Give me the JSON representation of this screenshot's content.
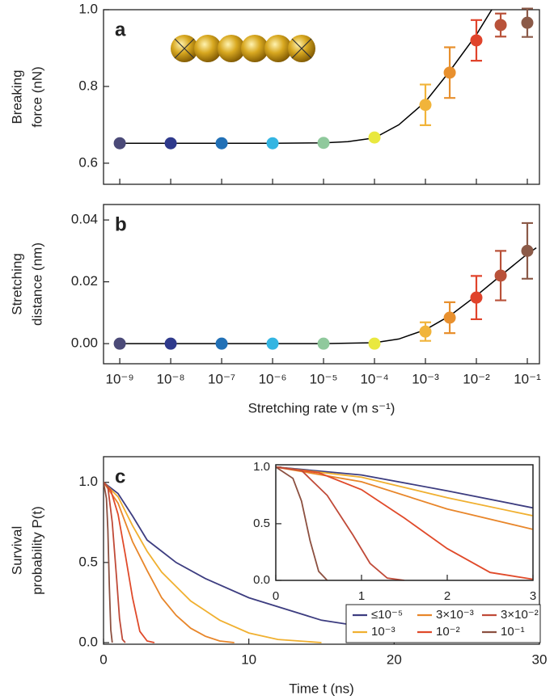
{
  "chart_data": [
    {
      "type": "scatter",
      "label": "a",
      "ylabel_lines": [
        "Breaking",
        "force (nN)"
      ],
      "xscale": "log",
      "xlim": [
        4.8e-10,
        0.173
      ],
      "ylim": [
        0.545,
        1.0
      ],
      "xticks": [
        1e-09,
        1e-08,
        1e-07,
        1e-06,
        1e-05,
        0.0001,
        0.001,
        0.01,
        0.1
      ],
      "yticks": [
        0.6,
        0.8,
        {
          "value": 1,
          "label": "1.0"
        }
      ],
      "x": [
        1e-09,
        1e-08,
        1e-07,
        1e-06,
        1e-05,
        0.0001,
        0.001,
        0.003,
        0.01,
        0.03,
        0.1
      ],
      "values": [
        0.652,
        0.652,
        0.652,
        0.652,
        0.653,
        0.667,
        0.752,
        0.836,
        0.92,
        0.96,
        0.966
      ],
      "errors": [
        null,
        null,
        null,
        null,
        null,
        null,
        0.053,
        0.066,
        0.053,
        0.03,
        0.037
      ],
      "colors": [
        "#4b4a78",
        "#2f3a8c",
        "#2170b6",
        "#33b5e2",
        "#8fc99c",
        "#e9e83f",
        "#f1b43a",
        "#e8902e",
        "#e0432b",
        "#b9523a",
        "#8b5a48"
      ],
      "fit": {
        "color": "#000000",
        "x": [
          1e-09,
          1e-06,
          1e-05,
          3e-05,
          0.0001,
          0.0003,
          0.001,
          0.003,
          0.01,
          0.02
        ],
        "values": [
          0.652,
          0.652,
          0.653,
          0.656,
          0.666,
          0.7,
          0.76,
          0.84,
          0.935,
          1.0
        ]
      }
    },
    {
      "type": "scatter",
      "label": "b",
      "ylabel_lines": [
        "Stretching",
        "distance (nm)"
      ],
      "xlabel": "Stretching rate v (m s⁻¹)",
      "xscale": "log",
      "xlim": [
        4.8e-10,
        0.173
      ],
      "ylim": [
        -0.0065,
        0.045
      ],
      "xticks": [
        {
          "value": 1e-09,
          "label": "10⁻⁹"
        },
        {
          "value": 1e-08,
          "label": "10⁻⁸"
        },
        {
          "value": 1e-07,
          "label": "10⁻⁷"
        },
        {
          "value": 1e-06,
          "label": "10⁻⁶"
        },
        {
          "value": 1e-05,
          "label": "10⁻⁵"
        },
        {
          "value": 0.0001,
          "label": "10⁻⁴"
        },
        {
          "value": 0.001,
          "label": "10⁻³"
        },
        {
          "value": 0.01,
          "label": "10⁻²"
        },
        {
          "value": 0.1,
          "label": "10⁻¹"
        }
      ],
      "yticks": [
        {
          "value": 0,
          "label": "0.00"
        },
        0.02,
        0.04
      ],
      "x": [
        1e-09,
        1e-08,
        1e-07,
        1e-06,
        1e-05,
        0.0001,
        0.001,
        0.003,
        0.01,
        0.03,
        0.1
      ],
      "values": [
        0,
        0,
        0,
        0,
        0,
        0,
        0.0039,
        0.0084,
        0.0149,
        0.022,
        0.03
      ],
      "errors": [
        null,
        null,
        null,
        null,
        null,
        null,
        0.003,
        0.005,
        0.007,
        0.008,
        0.009
      ],
      "colors": [
        "#4b4a78",
        "#2f3a8c",
        "#2170b6",
        "#33b5e2",
        "#8fc99c",
        "#e9e83f",
        "#f1b43a",
        "#e8902e",
        "#e0432b",
        "#b9523a",
        "#8b5a48"
      ],
      "fit": {
        "color": "#000000",
        "x": [
          1e-09,
          1e-06,
          1e-05,
          0.0001,
          0.0003,
          0.001,
          0.003,
          0.01,
          0.03,
          0.1,
          0.15
        ],
        "values": [
          0,
          0,
          0,
          0.0003,
          0.0015,
          0.0045,
          0.009,
          0.0155,
          0.022,
          0.029,
          0.031
        ]
      }
    },
    {
      "type": "line",
      "label": "c",
      "ylabel_lines": [
        "Survival",
        "probability P(t)"
      ],
      "xlabel": "Time t (ns)",
      "xlim": [
        0,
        30
      ],
      "ylim": [
        -0.01,
        1.16
      ],
      "xticks": [
        0,
        10,
        20,
        30
      ],
      "yticks": [
        {
          "value": 0,
          "label": "0.0"
        },
        0.5,
        {
          "value": 1,
          "label": "1.0"
        }
      ],
      "series": [
        {
          "name": "≤10⁻⁵",
          "color": "#3d3d80",
          "x": [
            0,
            1,
            2,
            3,
            4,
            5,
            7,
            10,
            15,
            20,
            25,
            30
          ],
          "values": [
            1,
            0.93,
            0.79,
            0.64,
            0.57,
            0.5,
            0.4,
            0.28,
            0.14,
            0.07,
            0.035,
            0.02
          ]
        },
        {
          "name": "10⁻³",
          "color": "#f0b030",
          "x": [
            0,
            1,
            2,
            3,
            4,
            5,
            6,
            8,
            10,
            12,
            15
          ],
          "values": [
            1,
            0.91,
            0.73,
            0.57,
            0.44,
            0.35,
            0.26,
            0.14,
            0.06,
            0.02,
            0
          ]
        },
        {
          "name": "3×10⁻³",
          "color": "#e8862a",
          "x": [
            0,
            1,
            2,
            3,
            4,
            5,
            6,
            7,
            8,
            9
          ],
          "values": [
            1,
            0.87,
            0.63,
            0.45,
            0.28,
            0.17,
            0.09,
            0.04,
            0.01,
            0
          ]
        },
        {
          "name": "10⁻²",
          "color": "#e04a2a",
          "x": [
            0,
            0.5,
            1,
            1.5,
            2,
            2.5,
            3,
            3.5
          ],
          "values": [
            1,
            0.95,
            0.8,
            0.55,
            0.28,
            0.07,
            0.01,
            0
          ]
        },
        {
          "name": "3×10⁻²",
          "color": "#c04a38",
          "x": [
            0,
            0.3,
            0.6,
            0.9,
            1.1,
            1.3,
            1.5
          ],
          "values": [
            1,
            0.97,
            0.75,
            0.4,
            0.15,
            0.02,
            0
          ]
        },
        {
          "name": "10⁻¹",
          "color": "#8c5040",
          "x": [
            0,
            0.2,
            0.3,
            0.4,
            0.5,
            0.6
          ],
          "values": [
            1,
            0.9,
            0.7,
            0.35,
            0.08,
            0
          ]
        }
      ],
      "inset": {
        "xlim": [
          0,
          3
        ],
        "ylim": [
          0,
          1.02
        ],
        "xticks": [
          0,
          1,
          2,
          3
        ],
        "yticks": [
          {
            "value": 0,
            "label": "0.0"
          },
          0.5,
          {
            "value": 1,
            "label": "1.0"
          }
        ]
      }
    }
  ]
}
